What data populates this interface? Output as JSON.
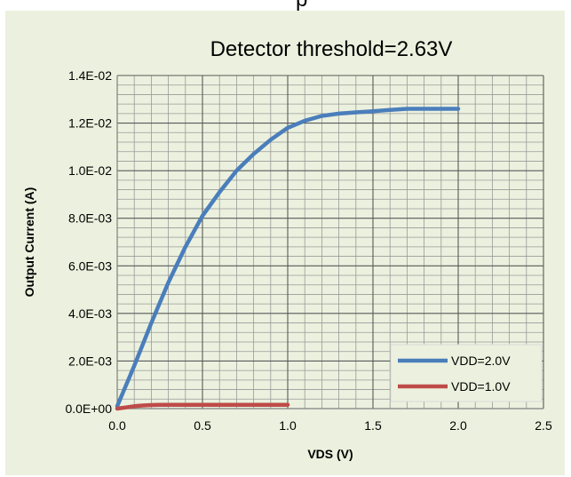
{
  "top_fragment": "p",
  "chart_data": {
    "type": "line",
    "title": "Detector threshold=2.63V",
    "xlabel": "VDS (V)",
    "ylabel": "Output Current  (A)",
    "xlim": [
      0,
      2.5
    ],
    "ylim": [
      0,
      0.014
    ],
    "x_ticks": [
      "0.0",
      "0.5",
      "1.0",
      "1.5",
      "2.0",
      "2.5"
    ],
    "y_ticks": [
      "0.0E+00",
      "2.0E-03",
      "4.0E-03",
      "6.0E-03",
      "8.0E-03",
      "1.0E-02",
      "1.2E-02",
      "1.4E-02"
    ],
    "grid": true,
    "legend_position": "bottom-right",
    "series": [
      {
        "name": "VDD=2.0V",
        "color": "#4a7ebb",
        "x": [
          0,
          0.1,
          0.2,
          0.3,
          0.4,
          0.5,
          0.6,
          0.7,
          0.8,
          0.9,
          1.0,
          1.1,
          1.2,
          1.3,
          1.4,
          1.5,
          1.6,
          1.7,
          1.8,
          1.9,
          2.0
        ],
        "y": [
          0.0001,
          0.0018,
          0.0036,
          0.0053,
          0.0068,
          0.0081,
          0.0091,
          0.01,
          0.0107,
          0.0113,
          0.0118,
          0.0121,
          0.0123,
          0.0124,
          0.01245,
          0.0125,
          0.01255,
          0.0126,
          0.0126,
          0.0126,
          0.0126
        ]
      },
      {
        "name": "VDD=1.0V",
        "color": "#be4b48",
        "x": [
          0,
          0.05,
          0.1,
          0.15,
          0.2,
          0.25,
          0.3,
          0.4,
          0.5,
          0.6,
          0.7,
          0.8,
          0.9,
          1.0
        ],
        "y": [
          0.0,
          5e-05,
          0.0001,
          0.00013,
          0.00015,
          0.00016,
          0.00016,
          0.00016,
          0.00016,
          0.00016,
          0.00016,
          0.00016,
          0.00016,
          0.00016
        ]
      }
    ]
  }
}
